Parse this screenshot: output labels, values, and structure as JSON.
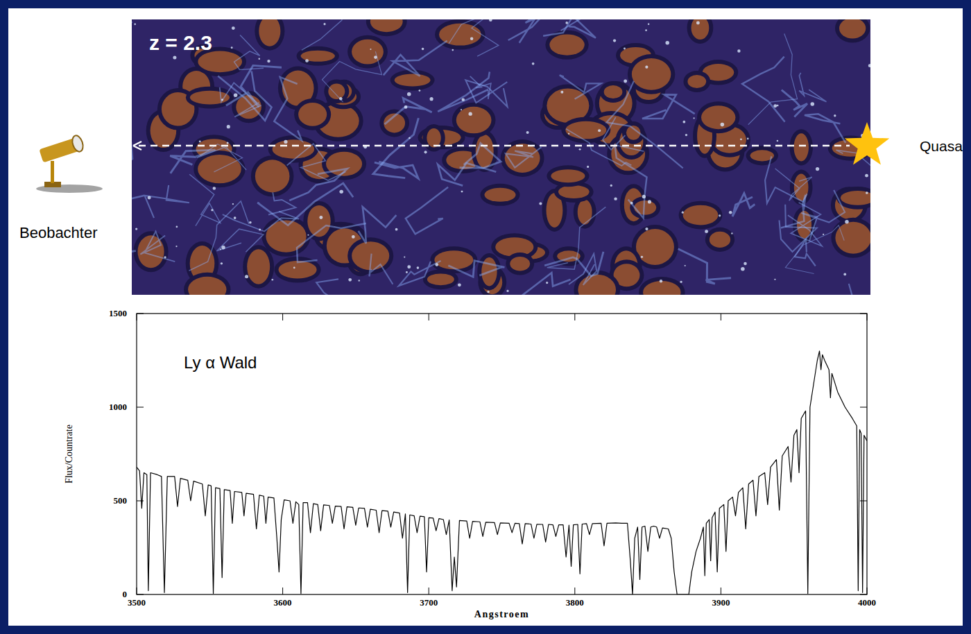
{
  "illustration": {
    "redshift": "z =  2.3",
    "observer": "Beobachter",
    "source": "Quasa"
  },
  "chart_data": {
    "type": "line",
    "annotations": [
      "Ly α Wald"
    ],
    "x_label": "Angstroem",
    "y_label": "Flux/Countrate",
    "color": "#000000",
    "xlim": [
      3500,
      4000
    ],
    "xticks": [
      3500,
      3600,
      3700,
      3800,
      3900,
      4000
    ],
    "ylim": [
      0,
      1500
    ],
    "yticks": [
      0,
      500,
      1000,
      1500
    ],
    "grid": false,
    "x": [
      3500,
      3502,
      3503.5,
      3505,
      3507,
      3508,
      3509.5,
      3514,
      3517,
      3519,
      3521,
      3526,
      3528,
      3530,
      3535,
      3537,
      3539,
      3545,
      3547,
      3549,
      3551,
      3552.5,
      3554,
      3557,
      3558.5,
      3560,
      3564,
      3565.5,
      3567,
      3572,
      3573.5,
      3575,
      3580,
      3582,
      3584,
      3587,
      3588.5,
      3590,
      3594,
      3596,
      3597.5,
      3599,
      3601,
      3605,
      3607,
      3609,
      3611,
      3612.5,
      3614,
      3617,
      3619,
      3621,
      3624,
      3626,
      3628,
      3632,
      3634,
      3636,
      3640,
      3642,
      3644,
      3648,
      3650,
      3652,
      3656,
      3658,
      3660,
      3664,
      3666,
      3668,
      3672,
      3674,
      3676,
      3680,
      3682,
      3684,
      3685.5,
      3687,
      3690,
      3692,
      3694,
      3697,
      3698.5,
      3700,
      3703,
      3705,
      3707,
      3710,
      3712,
      3714,
      3716,
      3717.5,
      3719,
      3721,
      3726,
      3728,
      3730,
      3735,
      3737,
      3739,
      3745,
      3747,
      3749,
      3755,
      3757,
      3759,
      3762,
      3764,
      3766,
      3770,
      3772,
      3774,
      3778,
      3780,
      3782,
      3785,
      3787,
      3789,
      3792,
      3794,
      3796,
      3797.5,
      3799,
      3802,
      3803.5,
      3805,
      3808,
      3810,
      3812,
      3818,
      3820,
      3822,
      3828,
      3832,
      3836,
      3838,
      3839.5,
      3841,
      3843,
      3844.5,
      3846,
      3848,
      3850,
      3852,
      3854,
      3856,
      3858,
      3860,
      3864,
      3866,
      3868,
      3870,
      3878,
      3880,
      3883,
      3886,
      3888,
      3889,
      3890,
      3892,
      3893,
      3894,
      3896,
      3897.5,
      3899,
      3902,
      3903.5,
      3905,
      3908,
      3910,
      3912,
      3915,
      3917,
      3919,
      3922,
      3924,
      3926,
      3930,
      3932,
      3934,
      3938,
      3940,
      3942,
      3946,
      3948,
      3950,
      3952,
      3953.5,
      3955,
      3958,
      3959.5,
      3961,
      3964,
      3966,
      3967.5,
      3968.5,
      3969.5,
      3971,
      3974,
      3975,
      3976,
      3980,
      3985,
      3990,
      3993,
      3994,
      3995,
      3996,
      3997,
      3998,
      4000
    ],
    "values": [
      680,
      660,
      460,
      650,
      640,
      20,
      650,
      640,
      630,
      10,
      630,
      630,
      470,
      620,
      610,
      500,
      605,
      590,
      420,
      585,
      580,
      5,
      570,
      565,
      90,
      560,
      555,
      380,
      550,
      545,
      420,
      540,
      535,
      350,
      530,
      525,
      380,
      520,
      515,
      300,
      120,
      400,
      505,
      500,
      380,
      495,
      480,
      5,
      490,
      490,
      330,
      485,
      480,
      340,
      478,
      475,
      380,
      472,
      470,
      350,
      468,
      465,
      370,
      462,
      460,
      360,
      455,
      450,
      330,
      448,
      445,
      360,
      440,
      435,
      300,
      430,
      10,
      425,
      420,
      330,
      418,
      415,
      120,
      410,
      408,
      340,
      405,
      400,
      320,
      398,
      20,
      200,
      40,
      395,
      392,
      300,
      390,
      388,
      310,
      386,
      384,
      320,
      382,
      380,
      330,
      380,
      378,
      270,
      378,
      376,
      300,
      375,
      374,
      280,
      374,
      372,
      310,
      372,
      372,
      200,
      370,
      150,
      372,
      374,
      110,
      376,
      378,
      320,
      378,
      380,
      260,
      380,
      382,
      380,
      380,
      180,
      0,
      300,
      360,
      80,
      360,
      365,
      230,
      360,
      365,
      360,
      300,
      355,
      350,
      300,
      120,
      0,
      0,
      120,
      230,
      300,
      360,
      100,
      380,
      400,
      180,
      410,
      440,
      120,
      460,
      480,
      230,
      500,
      520,
      420,
      545,
      570,
      350,
      590,
      610,
      420,
      630,
      650,
      480,
      680,
      720,
      450,
      740,
      790,
      600,
      850,
      880,
      650,
      940,
      980,
      5,
      1000,
      1150,
      1250,
      1300,
      1200,
      1280,
      1250,
      1200,
      1050,
      1180,
      1080,
      1000,
      940,
      900,
      20,
      880,
      860,
      10,
      850,
      820
    ]
  }
}
